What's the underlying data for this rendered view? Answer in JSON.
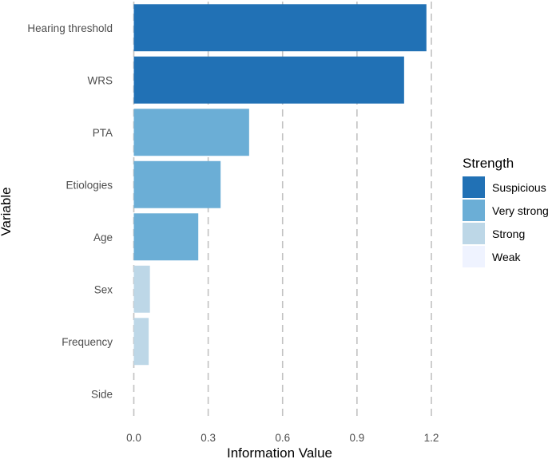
{
  "chart_data": {
    "type": "bar",
    "orientation": "horizontal",
    "title": "",
    "xlabel": "Information Value",
    "ylabel": "Variable",
    "xlim": [
      0,
      1.2
    ],
    "xticks": [
      "0.0",
      "0.3",
      "0.6",
      "0.9",
      "1.2"
    ],
    "xtick_values": [
      0,
      0.3,
      0.6,
      0.9,
      1.2
    ],
    "grid": "vertical dashed",
    "categories": [
      "Hearing threshold",
      "WRS",
      "PTA",
      "Etiologies",
      "Age",
      "Sex",
      "Frequency",
      "Side"
    ],
    "values": [
      1.18,
      1.09,
      0.465,
      0.35,
      0.26,
      0.065,
      0.06,
      0.0
    ],
    "strength": [
      "Suspicious",
      "Suspicious",
      "Very strong",
      "Very strong",
      "Very strong",
      "Strong",
      "Strong",
      "Weak"
    ],
    "legend": {
      "title": "Strength",
      "placement": "right",
      "items": [
        {
          "label": "Suspicious",
          "color": "#2171b5"
        },
        {
          "label": "Very strong",
          "color": "#6baed6"
        },
        {
          "label": "Strong",
          "color": "#bdd7e7"
        },
        {
          "label": "Weak",
          "color": "#eff3ff"
        }
      ]
    }
  }
}
